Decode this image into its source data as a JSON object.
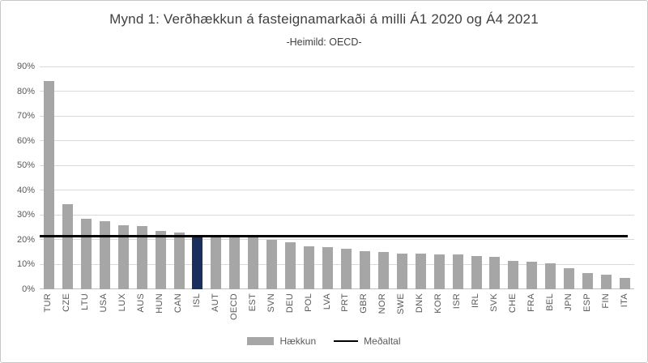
{
  "figure": {
    "title": "Mynd 1: Verðhækkun á fasteignamarkaði á milli Á1 2020 og Á4 2021",
    "subtitle": "-Heimild: OECD-"
  },
  "legend": {
    "bar_label": "Hækkun",
    "line_label": "Meðaltal"
  },
  "colors": {
    "bar": "#a6a6a6",
    "highlight_bar": "#1a2f5c",
    "average_line": "#000000",
    "title_text": "#404040",
    "axis_text": "#595959",
    "gridline": "#d9d9d9"
  },
  "chart_data": {
    "type": "bar",
    "title": "Mynd 1: Verðhækkun á fasteignamarkaði á milli Á1 2020 og Á4 2021",
    "subtitle": "-Heimild: OECD-",
    "xlabel": "",
    "ylabel": "",
    "ylim": [
      0,
      90
    ],
    "ytick_step": 10,
    "grid": true,
    "legend_position": "bottom",
    "yticks": [
      {
        "value": 0,
        "label": "0%"
      },
      {
        "value": 10,
        "label": "10%"
      },
      {
        "value": 20,
        "label": "20%"
      },
      {
        "value": 30,
        "label": "30%"
      },
      {
        "value": 40,
        "label": "40%"
      },
      {
        "value": 50,
        "label": "50%"
      },
      {
        "value": 60,
        "label": "60%"
      },
      {
        "value": 70,
        "label": "70%"
      },
      {
        "value": 80,
        "label": "80%"
      },
      {
        "value": 90,
        "label": "90%"
      }
    ],
    "categories": [
      "TUR",
      "CZE",
      "LTU",
      "USA",
      "LUX",
      "AUS",
      "HUN",
      "CAN",
      "ISL",
      "AUT",
      "OECD",
      "EST",
      "SVN",
      "DEU",
      "POL",
      "LVA",
      "PRT",
      "GBR",
      "NOR",
      "SWE",
      "DNK",
      "KOR",
      "ISR",
      "IRL",
      "SVK",
      "CHE",
      "FRA",
      "BEL",
      "JPN",
      "ESP",
      "FIN",
      "ITA"
    ],
    "series": [
      {
        "name": "Hækkun",
        "values": [
          84,
          34.5,
          28.5,
          27.5,
          26,
          25.5,
          23.5,
          23,
          22,
          21.5,
          21.5,
          21.5,
          20,
          19,
          17.5,
          17,
          16.5,
          15.5,
          15,
          14.5,
          14.5,
          14,
          14,
          13.5,
          13,
          11.5,
          11,
          10.5,
          8.5,
          6.5,
          6,
          4.5
        ]
      }
    ],
    "bar_color": "#a6a6a6",
    "highlight": {
      "category": "ISL",
      "color": "#1a2f5c"
    },
    "average_line": {
      "label": "Meðaltal",
      "value": 21.5,
      "color": "#000000"
    }
  }
}
